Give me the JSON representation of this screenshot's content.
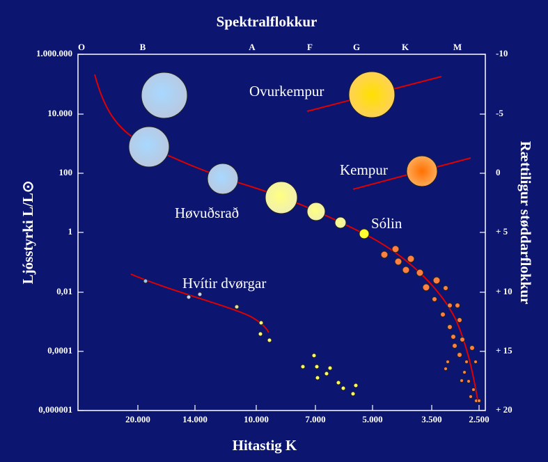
{
  "header": {
    "top_title": "Spektralflokkur",
    "bottom_title": "Hitastig K",
    "left_title": "Ljósstyrki L/L⊙",
    "right_title": "Rættiligur støddarflokkur"
  },
  "spectral_classes": [
    "O",
    "B",
    "A",
    "F",
    "G",
    "K",
    "M"
  ],
  "luminosity_labels": [
    "1.000.000",
    "10.000",
    "100",
    "1",
    "0,01",
    "0,0001",
    "0,000001"
  ],
  "magnitude_labels": [
    "-10",
    "-5",
    "0",
    "+ 5",
    "+ 10",
    "+ 15",
    "+ 20"
  ],
  "temperature_labels": [
    "20.000",
    "14.000",
    "10.000",
    "7.000",
    "5.000",
    "3.500",
    "2.500"
  ],
  "regions": [
    "Ovurkempur",
    "Kempur",
    "Høvuðsrað",
    "Sólin",
    "Hvítir dvørgar"
  ]
}
